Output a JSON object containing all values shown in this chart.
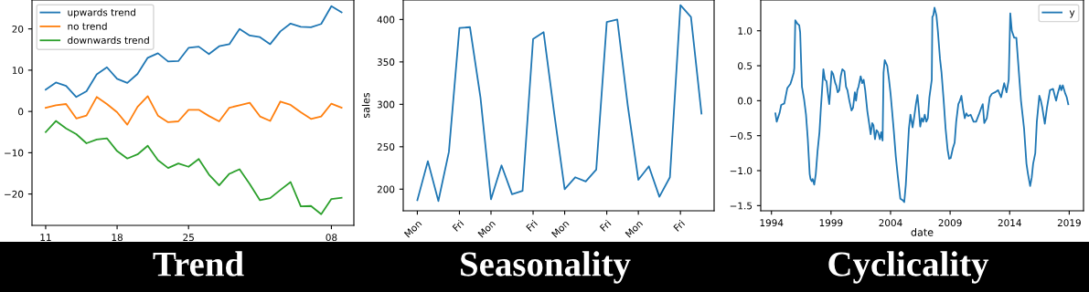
{
  "chart_data": [
    {
      "type": "line",
      "title": "Trend",
      "legend": "top left",
      "categories": [
        "11",
        null,
        null,
        null,
        null,
        null,
        null,
        "18",
        null,
        null,
        null,
        null,
        null,
        null,
        "25",
        null,
        null,
        null,
        null,
        null,
        null,
        null,
        null,
        null,
        null,
        null,
        null,
        null,
        "08",
        null
      ],
      "ylim": [
        -27.6,
        27
      ],
      "yticks": [
        {
          "value": -20,
          "label": "−20"
        },
        {
          "value": -10,
          "label": "−10"
        },
        0,
        10,
        20
      ],
      "series": [
        {
          "name": "upwards trend",
          "color": "#1f77b4",
          "values": [
            5.3,
            7.0,
            6.2,
            3.5,
            4.9,
            9.0,
            10.7,
            7.9,
            6.9,
            9.1,
            13.0,
            14.1,
            12.1,
            12.2,
            15.4,
            15.7,
            13.9,
            15.8,
            16.3,
            20.0,
            18.4,
            18.0,
            16.3,
            19.4,
            21.3,
            20.5,
            20.4,
            21.2,
            25.5,
            24.0
          ]
        },
        {
          "name": "no trend",
          "color": "#ff7f0e",
          "values": [
            0.9,
            1.5,
            1.8,
            -1.7,
            -1.0,
            3.5,
            1.8,
            -0.2,
            -3.2,
            1.1,
            3.7,
            -1.0,
            -2.6,
            -2.4,
            0.4,
            0.4,
            -1.1,
            -2.4,
            0.9,
            1.5,
            2.1,
            -1.2,
            -2.3,
            2.4,
            1.6,
            -0.2,
            -1.8,
            -1.2,
            1.9,
            0.9
          ]
        },
        {
          "name": "downwards trend",
          "color": "#2ca02c",
          "values": [
            -5.0,
            -2.3,
            -4.1,
            -5.5,
            -7.7,
            -6.8,
            -6.5,
            -9.6,
            -11.4,
            -10.4,
            -8.3,
            -11.8,
            -13.7,
            -12.6,
            -13.4,
            -11.5,
            -15.3,
            -17.9,
            -15.1,
            -14.0,
            -17.6,
            -21.5,
            -21.0,
            -19.0,
            -17.1,
            -23.0,
            -22.9,
            -24.9,
            -21.2,
            -20.9
          ]
        }
      ]
    },
    {
      "type": "line",
      "title": "Seasonality",
      "ylabel": "sales",
      "categories": [
        "Mon",
        null,
        null,
        null,
        "Fri",
        null,
        null,
        "Mon",
        null,
        null,
        null,
        "Fri",
        null,
        null,
        "Mon",
        null,
        null,
        null,
        "Fri",
        null,
        null,
        "Mon",
        null,
        null,
        null,
        "Fri",
        null,
        null
      ],
      "ylim": [
        174.5,
        423
      ],
      "yticks": [
        200,
        250,
        300,
        350,
        400
      ],
      "series": [
        {
          "color": "#1f77b4",
          "values": [
            187,
            233,
            186,
            244,
            390,
            391,
            308,
            188,
            228,
            194,
            198,
            377,
            385,
            290,
            200,
            214,
            209,
            223,
            397,
            400,
            298,
            211,
            227,
            191,
            214,
            417,
            403,
            289
          ]
        }
      ]
    },
    {
      "type": "line",
      "title": "Cyclicality",
      "xlabel": "date",
      "legend": "top right",
      "xlim": [
        1993.1,
        2020.2
      ],
      "xticks": [
        1994,
        1999,
        2004,
        2009,
        2014,
        2019
      ],
      "ylim": [
        -1.574,
        1.44
      ],
      "yticks": [
        {
          "value": -1.5,
          "label": "−1.5"
        },
        {
          "value": -1.0,
          "label": "−1.0"
        },
        {
          "value": -0.5,
          "label": "−0.5"
        },
        {
          "value": 0,
          "label": "0.0"
        },
        0.5,
        {
          "value": 1,
          "label": "1.0"
        }
      ],
      "series": [
        {
          "name": "y",
          "color": "#1f77b4",
          "x": [
            1994.33,
            1994.44,
            1994.69,
            1994.82,
            1995.08,
            1995.33,
            1995.59,
            1995.72,
            1995.87,
            1995.92,
            1996.0,
            1996.18,
            1996.33,
            1996.41,
            1996.49,
            1996.56,
            1996.74,
            1996.9,
            1997.05,
            1997.21,
            1997.28,
            1997.38,
            1997.46,
            1997.59,
            1997.72,
            1997.87,
            1998.03,
            1998.15,
            1998.23,
            1998.36,
            1998.49,
            1998.62,
            1998.74,
            1998.85,
            1998.92,
            1999.05,
            1999.18,
            1999.36,
            1999.44,
            1999.56,
            1999.69,
            1999.82,
            1999.95,
            2000.13,
            2000.26,
            2000.38,
            2000.54,
            2000.72,
            2000.85,
            2000.92,
            2001.0,
            2001.1,
            2001.21,
            2001.31,
            2001.49,
            2001.62,
            2001.74,
            2001.87,
            2002.05,
            2002.18,
            2002.33,
            2002.46,
            2002.56,
            2002.69,
            2002.82,
            2002.95,
            2003.1,
            2003.21,
            2003.33,
            2003.41,
            2003.51,
            2003.72,
            2003.87,
            2004.0,
            2004.13,
            2004.28,
            2004.44,
            2004.59,
            2004.82,
            2005.0,
            2005.15,
            2005.28,
            2005.41,
            2005.54,
            2005.67,
            2005.85,
            2005.97,
            2006.13,
            2006.26,
            2006.36,
            2006.49,
            2006.62,
            2006.74,
            2006.87,
            2007.0,
            2007.13,
            2007.26,
            2007.38,
            2007.46,
            2007.51,
            2007.59,
            2007.69,
            2007.85,
            2007.97,
            2008.15,
            2008.28,
            2008.46,
            2008.62,
            2008.79,
            2008.92,
            2009.05,
            2009.23,
            2009.38,
            2009.51,
            2009.69,
            2009.82,
            2009.95,
            2010.08,
            2010.23,
            2010.36,
            2010.51,
            2010.72,
            2010.97,
            2011.18,
            2011.41,
            2011.62,
            2011.74,
            2011.87,
            2012.08,
            2012.33,
            2012.51,
            2012.77,
            2013.03,
            2013.28,
            2013.54,
            2013.74,
            2013.92,
            2014.05,
            2014.18,
            2014.38,
            2014.56,
            2014.69,
            2014.82,
            2014.95,
            2015.08,
            2015.21,
            2015.41,
            2015.54,
            2015.72,
            2015.85,
            2015.97,
            2016.15,
            2016.28,
            2016.49,
            2016.62,
            2016.74,
            2016.95,
            2017.13,
            2017.38,
            2017.64,
            2017.82,
            2017.9,
            2018.03,
            2018.23,
            2018.33,
            2018.46,
            2018.67,
            2018.79,
            2018.92
          ],
          "values": [
            -0.18,
            -0.3,
            -0.17,
            -0.06,
            -0.04,
            0.18,
            0.24,
            0.31,
            0.4,
            0.47,
            1.15,
            1.1,
            1.08,
            0.98,
            0.55,
            0.2,
            0.02,
            -0.2,
            -0.55,
            -1.05,
            -1.12,
            -1.15,
            -1.12,
            -1.2,
            -1.05,
            -0.72,
            -0.45,
            -0.1,
            0.1,
            0.45,
            0.3,
            0.28,
            0.1,
            -0.05,
            0.1,
            0.42,
            0.38,
            0.25,
            0.22,
            0.12,
            0.15,
            0.35,
            0.45,
            0.42,
            0.2,
            0.15,
            0.0,
            -0.14,
            -0.1,
            0.0,
            0.12,
            0.0,
            0.15,
            0.2,
            0.35,
            0.25,
            0.3,
            0.15,
            -0.15,
            -0.3,
            -0.48,
            -0.32,
            -0.35,
            -0.55,
            -0.42,
            -0.45,
            -0.55,
            -0.45,
            -0.57,
            0.4,
            0.58,
            0.5,
            0.3,
            0.1,
            -0.15,
            -0.45,
            -0.8,
            -1.05,
            -1.4,
            -1.42,
            -1.45,
            -1.2,
            -0.8,
            -0.4,
            -0.2,
            -0.38,
            -0.25,
            -0.05,
            0.08,
            -0.1,
            -0.37,
            -0.25,
            -0.3,
            -0.2,
            -0.3,
            -0.25,
            0.05,
            0.2,
            0.3,
            1.2,
            1.22,
            1.33,
            1.22,
            1.0,
            0.6,
            0.4,
            0.0,
            -0.4,
            -0.7,
            -0.83,
            -0.82,
            -0.68,
            -0.6,
            -0.3,
            -0.05,
            0.0,
            0.07,
            -0.1,
            -0.25,
            -0.18,
            -0.22,
            -0.2,
            -0.3,
            -0.3,
            -0.2,
            -0.1,
            -0.05,
            -0.32,
            -0.25,
            0.05,
            0.1,
            0.12,
            0.15,
            0.05,
            0.25,
            0.12,
            0.3,
            1.25,
            1.0,
            0.9,
            0.9,
            0.6,
            0.3,
            0.0,
            -0.2,
            -0.4,
            -0.9,
            -1.05,
            -1.22,
            -1.1,
            -0.9,
            -0.75,
            -0.3,
            0.07,
            0.0,
            -0.1,
            -0.33,
            -0.1,
            0.15,
            0.17,
            0.05,
            0.0,
            0.1,
            0.22,
            0.15,
            0.22,
            0.1,
            0.05,
            -0.05
          ]
        }
      ]
    }
  ]
}
